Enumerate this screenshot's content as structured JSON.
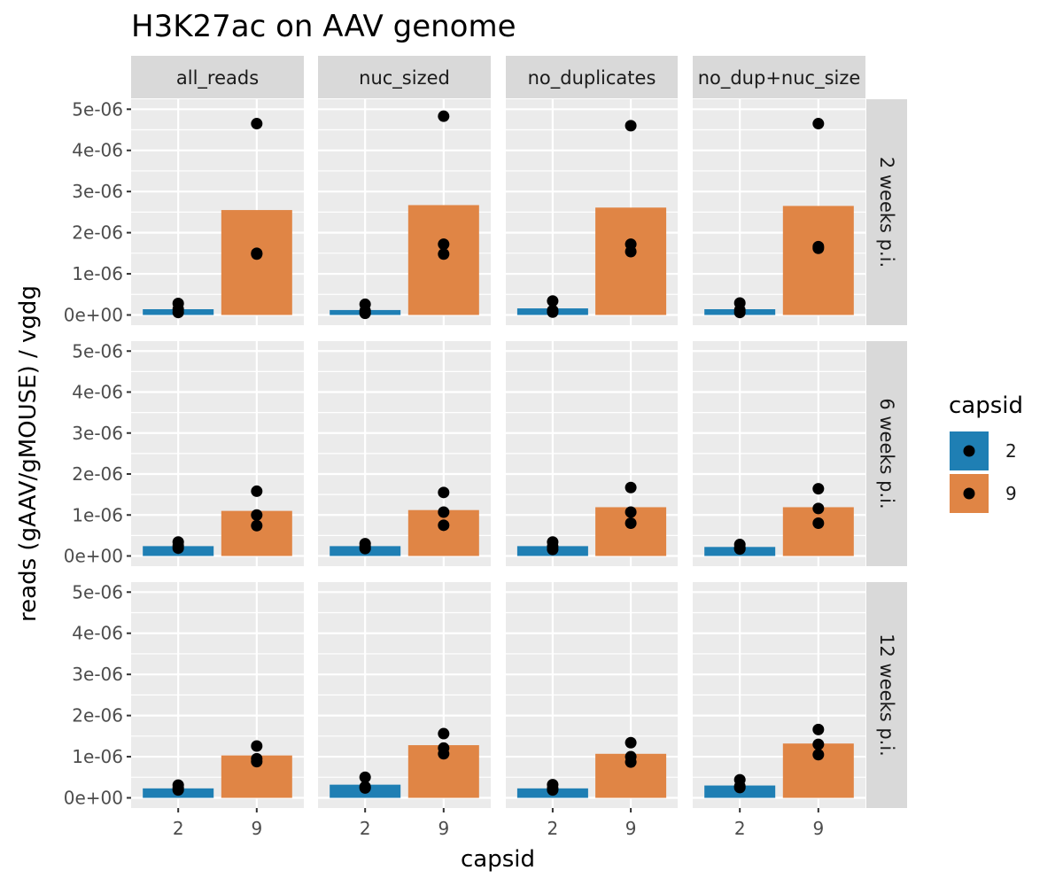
{
  "chart_data": {
    "type": "bar",
    "title": "H3K27ac on AAV genome",
    "xlabel": "capsid",
    "ylabel": "reads (gAAV/gMOUSE) / vgdg",
    "categories": [
      "2",
      "9"
    ],
    "ylim": [
      0,
      5.2e-06
    ],
    "yticks": [
      0,
      1e-06,
      2e-06,
      3e-06,
      4e-06,
      5e-06
    ],
    "ytick_labels": [
      "0e+00",
      "1e-06",
      "2e-06",
      "3e-06",
      "4e-06",
      "5e-06"
    ],
    "grid": true,
    "legend": {
      "title": "capsid",
      "placement": "right",
      "entries": [
        {
          "label": "2",
          "color": "#1f7fb4"
        },
        {
          "label": "9",
          "color": "#e08545"
        }
      ]
    },
    "point_color": "#000000",
    "col_facets": [
      "all_reads",
      "nuc_sized",
      "no_duplicates",
      "no_dup+nuc_size"
    ],
    "row_facets": [
      "2 weeks p.i.",
      "6 weeks p.i.",
      "12 weeks p.i."
    ],
    "panels": [
      {
        "row": 0,
        "col": 0,
        "bars": [
          1.4e-07,
          2.55e-06
        ],
        "points": [
          [
            6e-08,
            1.4e-07,
            2.8e-07
          ],
          [
            1.48e-06,
            1.5e-06,
            4.65e-06
          ]
        ]
      },
      {
        "row": 0,
        "col": 1,
        "bars": [
          1.2e-07,
          2.67e-06
        ],
        "points": [
          [
            4e-08,
            1e-07,
            2.6e-07
          ],
          [
            1.48e-06,
            1.72e-06,
            4.83e-06
          ]
        ]
      },
      {
        "row": 0,
        "col": 2,
        "bars": [
          1.6e-07,
          2.61e-06
        ],
        "points": [
          [
            7e-08,
            1.1e-07,
            3.4e-07
          ],
          [
            1.54e-06,
            1.72e-06,
            4.6e-06
          ]
        ]
      },
      {
        "row": 0,
        "col": 3,
        "bars": [
          1.4e-07,
          2.65e-06
        ],
        "points": [
          [
            6e-08,
            1.2e-07,
            2.9e-07
          ],
          [
            1.62e-06,
            1.66e-06,
            4.65e-06
          ]
        ]
      },
      {
        "row": 1,
        "col": 0,
        "bars": [
          2.4e-07,
          1.1e-06
        ],
        "points": [
          [
            1.9e-07,
            2.5e-07,
            3.4e-07
          ],
          [
            7.4e-07,
            1e-06,
            1.58e-06
          ]
        ]
      },
      {
        "row": 1,
        "col": 1,
        "bars": [
          2.4e-07,
          1.12e-06
        ],
        "points": [
          [
            1.8e-07,
            2.3e-07,
            3e-07
          ],
          [
            7.5e-07,
            1.07e-06,
            1.55e-06
          ]
        ]
      },
      {
        "row": 1,
        "col": 2,
        "bars": [
          2.4e-07,
          1.19e-06
        ],
        "points": [
          [
            1.6e-07,
            2.3e-07,
            3.4e-07
          ],
          [
            8e-07,
            1.07e-06,
            1.67e-06
          ]
        ]
      },
      {
        "row": 1,
        "col": 3,
        "bars": [
          2.2e-07,
          1.19e-06
        ],
        "points": [
          [
            1.7e-07,
            2e-07,
            2.8e-07
          ],
          [
            8e-07,
            1.16e-06,
            1.64e-06
          ]
        ]
      },
      {
        "row": 2,
        "col": 0,
        "bars": [
          2.3e-07,
          1.03e-06
        ],
        "points": [
          [
            1.9e-07,
            2.4e-07,
            3.1e-07
          ],
          [
            8.8e-07,
            9.5e-07,
            1.26e-06
          ]
        ]
      },
      {
        "row": 2,
        "col": 1,
        "bars": [
          3.2e-07,
          1.28e-06
        ],
        "points": [
          [
            2.4e-07,
            2.7e-07,
            5e-07
          ],
          [
            1.07e-06,
            1.21e-06,
            1.56e-06
          ]
        ]
      },
      {
        "row": 2,
        "col": 2,
        "bars": [
          2.3e-07,
          1.07e-06
        ],
        "points": [
          [
            1.9e-07,
            2.3e-07,
            3.2e-07
          ],
          [
            8.7e-07,
            1e-06,
            1.34e-06
          ]
        ]
      },
      {
        "row": 2,
        "col": 3,
        "bars": [
          3e-07,
          1.32e-06
        ],
        "points": [
          [
            2.5e-07,
            2.8e-07,
            4.4e-07
          ],
          [
            1.05e-06,
            1.3e-06,
            1.66e-06
          ]
        ]
      }
    ]
  }
}
